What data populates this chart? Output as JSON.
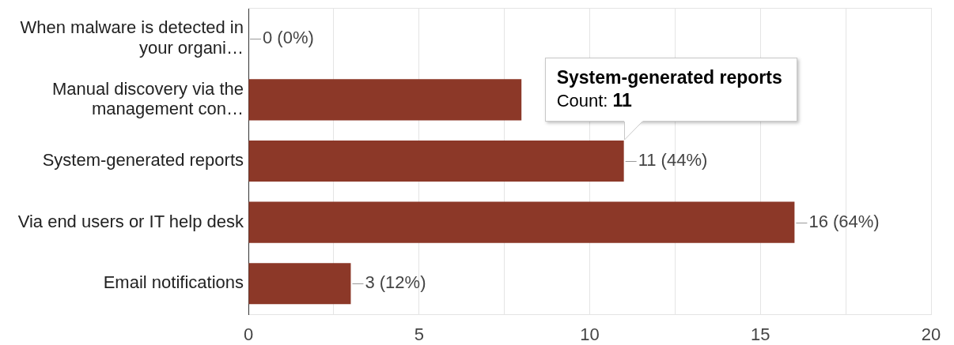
{
  "chart_data": {
    "type": "bar",
    "orientation": "horizontal",
    "categories": [
      "When malware is detected in your organi…",
      "Manual discovery via the management con…",
      "System-generated reports",
      "Via end users or IT help desk",
      "Email notifications"
    ],
    "values": [
      0,
      8,
      11,
      16,
      3
    ],
    "color": "#8c3828",
    "value_labels": [
      "0 (0%)",
      null,
      "11 (44%)",
      "16 (64%)",
      "3 (12%)"
    ],
    "xlim": [
      0,
      20
    ],
    "xticks": [
      0,
      {
        "value": 2.5,
        "label": null
      },
      5,
      {
        "value": 7.5,
        "label": null
      },
      10,
      {
        "value": 12.5,
        "label": null
      },
      15,
      {
        "value": 17.5,
        "label": null
      },
      20
    ],
    "grid": "x",
    "annotations": [
      {
        "text": "System-generated reports\nCount: 11",
        "x": 11,
        "y": "System-generated reports"
      }
    ]
  }
}
